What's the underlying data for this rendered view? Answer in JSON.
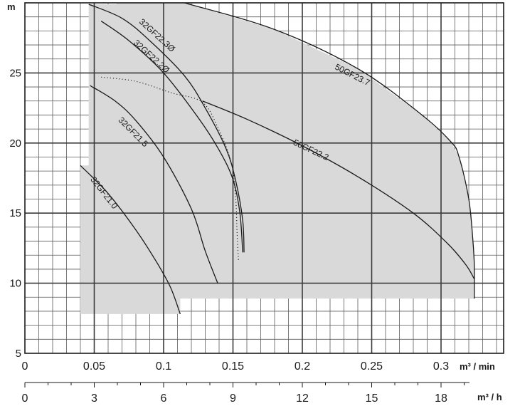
{
  "chart_data": {
    "type": "line",
    "y_unit": "m",
    "x_unit": "m³ / min",
    "x2_unit": "m³ / h",
    "x_ticks": [
      "0",
      "0.05",
      "0.1",
      "0.15",
      "0.2",
      "0.25",
      "0.3"
    ],
    "x2_ticks": [
      "0",
      "3",
      "6",
      "9",
      "12",
      "15",
      "18"
    ],
    "y_ticks": [
      "5",
      "10",
      "15",
      "20",
      "25"
    ],
    "xlim": [
      0,
      0.35
    ],
    "ylim": [
      5,
      30
    ],
    "grid": true,
    "fill_color": "#d9d9d9",
    "line_color": "#1a1a1a",
    "operating_region": [
      [
        0.04,
        7.8
      ],
      [
        0.04,
        18.4
      ],
      [
        0.046,
        18.4
      ],
      [
        0.046,
        29.9
      ],
      [
        0.066,
        29.9
      ],
      [
        0.066,
        30
      ],
      [
        0.115,
        30
      ],
      [
        0.18,
        28.1
      ],
      [
        0.24,
        25.3
      ],
      [
        0.285,
        22.1
      ],
      [
        0.307,
        20.1
      ],
      [
        0.313,
        19.0
      ],
      [
        0.32,
        16.0
      ],
      [
        0.323,
        13.0
      ],
      [
        0.324,
        11.2
      ],
      [
        0.324,
        8.9
      ],
      [
        0.112,
        8.9
      ],
      [
        0.112,
        7.8
      ]
    ],
    "series": [
      {
        "name": "32GF21.0",
        "label_at": [
          0.047,
          17.4
        ],
        "label_angle": 52,
        "points": [
          [
            0.04,
            18.4
          ],
          [
            0.06,
            16.4
          ],
          [
            0.08,
            13.8
          ],
          [
            0.095,
            11.5
          ],
          [
            0.105,
            9.7
          ],
          [
            0.112,
            7.8
          ]
        ]
      },
      {
        "name": "32GF21.5",
        "label_at": [
          0.067,
          21.6
        ],
        "label_angle": 45,
        "points": [
          [
            0.047,
            24.1
          ],
          [
            0.065,
            23.0
          ],
          [
            0.08,
            21.6
          ],
          [
            0.1,
            19.0
          ],
          [
            0.12,
            15.3
          ],
          [
            0.13,
            12.3
          ],
          [
            0.139,
            10.0
          ]
        ]
      },
      {
        "name": "32GF22.2Ø",
        "label_at": [
          0.078,
          27.1
        ],
        "label_angle": 42,
        "points": [
          [
            0.055,
            28.7
          ],
          [
            0.075,
            27.3
          ],
          [
            0.1,
            25.0
          ],
          [
            0.125,
            21.8
          ],
          [
            0.14,
            19.5
          ],
          [
            0.15,
            17.4
          ],
          [
            0.155,
            15.0
          ],
          [
            0.157,
            12.2
          ]
        ]
      },
      {
        "name": "32GF22.3Ø",
        "label_at": [
          0.082,
          28.6
        ],
        "label_angle": 42,
        "points": [
          [
            0.046,
            29.9
          ],
          [
            0.07,
            28.9
          ],
          [
            0.09,
            27.3
          ],
          [
            0.115,
            24.8
          ],
          [
            0.13,
            22.5
          ],
          [
            0.145,
            19.6
          ],
          [
            0.152,
            17.3
          ],
          [
            0.157,
            14.5
          ],
          [
            0.158,
            12.2
          ]
        ]
      },
      {
        "name": "50GF22.2",
        "label_at": [
          0.193,
          19.9
        ],
        "label_angle": 25,
        "points": [
          [
            0.128,
            23.0
          ],
          [
            0.16,
            21.7
          ],
          [
            0.2,
            19.8
          ],
          [
            0.24,
            17.6
          ],
          [
            0.28,
            15.0
          ],
          [
            0.305,
            12.8
          ],
          [
            0.318,
            11.3
          ],
          [
            0.324,
            10.3
          ]
        ]
      },
      {
        "name": "50GF23.7",
        "label_at": [
          0.223,
          25.3
        ],
        "label_angle": 27,
        "points": [
          [
            0.115,
            30.0
          ],
          [
            0.18,
            28.1
          ],
          [
            0.24,
            25.3
          ],
          [
            0.285,
            22.1
          ],
          [
            0.307,
            20.1
          ],
          [
            0.313,
            19.0
          ],
          [
            0.32,
            16.0
          ],
          [
            0.323,
            13.0
          ],
          [
            0.324,
            11.2
          ],
          [
            0.324,
            8.9
          ]
        ]
      }
    ],
    "dotted_curve": [
      [
        0.055,
        24.7
      ],
      [
        0.08,
        24.4
      ],
      [
        0.105,
        23.6
      ],
      [
        0.128,
        22.9
      ],
      [
        0.14,
        20.9
      ],
      [
        0.149,
        18.5
      ],
      [
        0.152,
        16.0
      ],
      [
        0.153,
        13.5
      ],
      [
        0.154,
        11.6
      ]
    ]
  }
}
